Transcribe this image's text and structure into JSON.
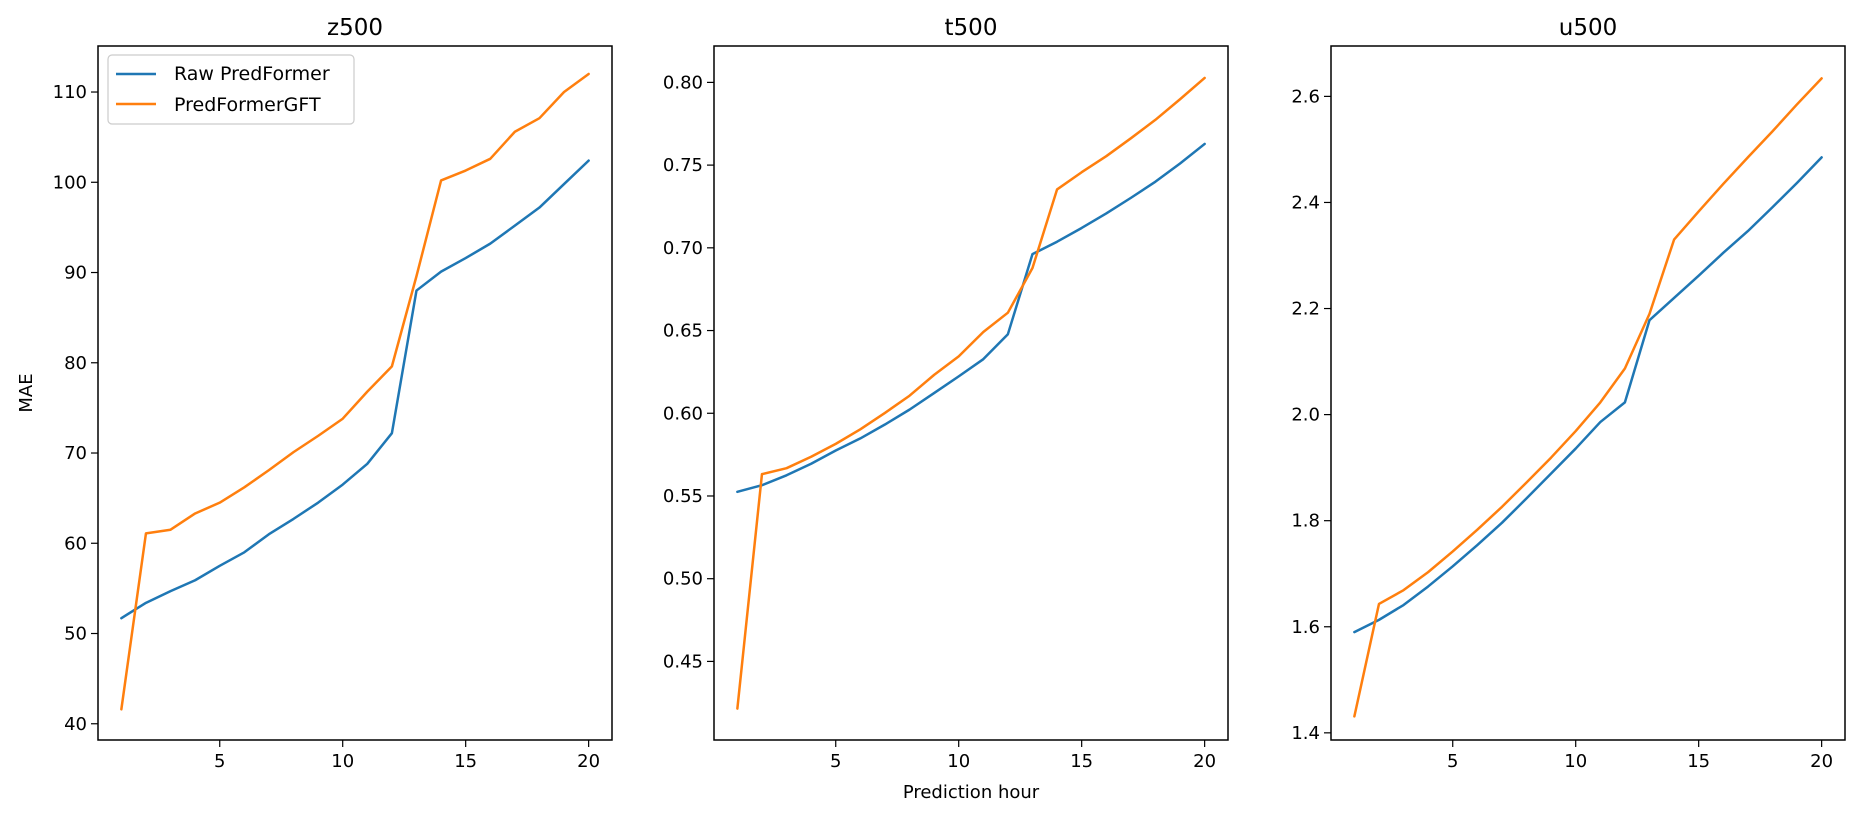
{
  "figure": {
    "xlabel": "Prediction hour",
    "ylabel": "MAE",
    "legend": {
      "placement": "upper-left of first panel",
      "entries": [
        "Raw PredFormer",
        "PredFormerGFT"
      ]
    }
  },
  "colors": {
    "series_0": "#1f77b4",
    "series_1": "#ff7f0e"
  },
  "chart_data": [
    {
      "type": "line",
      "title": "z500",
      "xlabel": "",
      "ylabel": "MAE",
      "x": [
        1,
        2,
        3,
        4,
        5,
        6,
        7,
        8,
        9,
        10,
        11,
        12,
        13,
        14,
        15,
        16,
        17,
        18,
        19,
        20
      ],
      "xlim": [
        0.05,
        20.95
      ],
      "ylim": [
        38.2,
        115.1
      ],
      "xticks": [
        5,
        10,
        15,
        20
      ],
      "yticks": [
        40,
        50,
        60,
        70,
        80,
        90,
        100,
        110
      ],
      "grid": false,
      "legend": "upper left",
      "series": [
        {
          "name": "Raw PredFormer",
          "values": [
            51.7,
            53.4,
            54.7,
            55.9,
            57.5,
            59.0,
            61.0,
            62.7,
            64.5,
            66.5,
            68.8,
            72.2,
            88.0,
            90.1,
            91.6,
            93.2,
            95.2,
            97.2,
            99.8,
            102.4
          ]
        },
        {
          "name": "PredFormerGFT",
          "values": [
            41.6,
            61.1,
            61.5,
            63.3,
            64.5,
            66.2,
            68.1,
            70.1,
            71.9,
            73.8,
            76.8,
            79.6,
            89.6,
            100.2,
            101.3,
            102.6,
            105.6,
            107.1,
            110.0,
            112.0
          ]
        }
      ]
    },
    {
      "type": "line",
      "title": "t500",
      "xlabel": "Prediction hour",
      "ylabel": "",
      "x": [
        1,
        2,
        3,
        4,
        5,
        6,
        7,
        8,
        9,
        10,
        11,
        12,
        13,
        14,
        15,
        16,
        17,
        18,
        19,
        20
      ],
      "xlim": [
        0.05,
        20.95
      ],
      "ylim": [
        0.4025,
        0.822
      ],
      "xticks": [
        5,
        10,
        15,
        20
      ],
      "yticks": [
        0.45,
        0.5,
        0.55,
        0.6,
        0.65,
        0.7,
        0.75,
        0.8
      ],
      "ytick_labels": [
        "0.45",
        "0.50",
        "0.55",
        "0.60",
        "0.65",
        "0.70",
        "0.75",
        "0.80"
      ],
      "grid": false,
      "series": [
        {
          "name": "Raw PredFormer",
          "values": [
            0.5525,
            0.5565,
            0.5625,
            0.5695,
            0.5775,
            0.5848,
            0.5932,
            0.6022,
            0.6122,
            0.6223,
            0.6327,
            0.6478,
            0.6962,
            0.7037,
            0.712,
            0.7208,
            0.7302,
            0.74,
            0.751,
            0.7628
          ]
        },
        {
          "name": "PredFormerGFT",
          "values": [
            0.4215,
            0.5632,
            0.5668,
            0.5737,
            0.5815,
            0.5903,
            0.6002,
            0.6106,
            0.6232,
            0.6344,
            0.6491,
            0.6608,
            0.6878,
            0.7353,
            0.7457,
            0.7554,
            0.7662,
            0.7774,
            0.7898,
            0.8027
          ]
        }
      ]
    },
    {
      "type": "line",
      "title": "u500",
      "xlabel": "",
      "ylabel": "",
      "x": [
        1,
        2,
        3,
        4,
        5,
        6,
        7,
        8,
        9,
        10,
        11,
        12,
        13,
        14,
        15,
        16,
        17,
        18,
        19,
        20
      ],
      "xlim": [
        0.05,
        20.95
      ],
      "ylim": [
        1.3865,
        2.695
      ],
      "xticks": [
        5,
        10,
        15,
        20
      ],
      "yticks": [
        1.4,
        1.6,
        1.8,
        2.0,
        2.2,
        2.4,
        2.6
      ],
      "ytick_labels": [
        "1.4",
        "1.6",
        "1.8",
        "2.0",
        "2.2",
        "2.4",
        "2.6"
      ],
      "grid": false,
      "series": [
        {
          "name": "Raw PredFormer",
          "values": [
            1.59,
            1.613,
            1.641,
            1.676,
            1.714,
            1.754,
            1.796,
            1.842,
            1.889,
            1.936,
            1.986,
            2.023,
            2.178,
            2.22,
            2.262,
            2.305,
            2.346,
            2.391,
            2.437,
            2.485
          ]
        },
        {
          "name": "PredFormerGFT",
          "values": [
            1.431,
            1.643,
            1.669,
            1.703,
            1.742,
            1.783,
            1.826,
            1.872,
            1.919,
            1.969,
            2.023,
            2.087,
            2.19,
            2.33,
            2.383,
            2.435,
            2.485,
            2.534,
            2.585,
            2.634
          ]
        }
      ]
    }
  ]
}
